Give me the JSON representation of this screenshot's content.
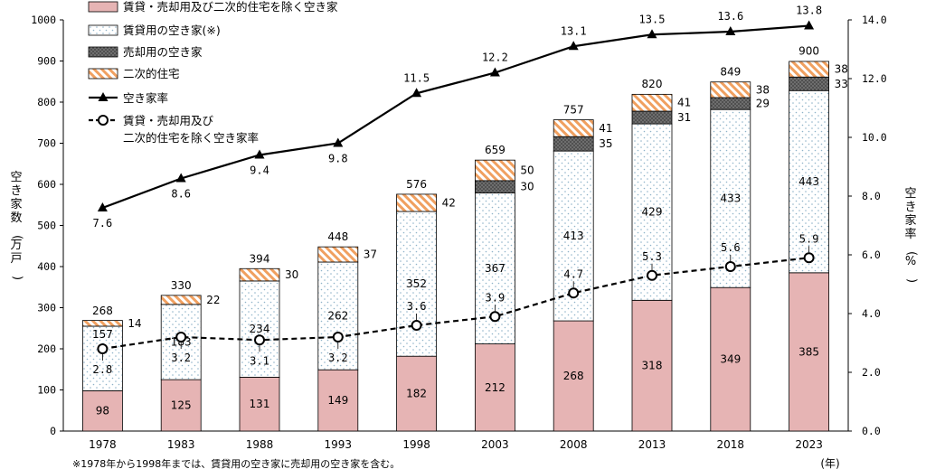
{
  "chart_data": {
    "type": "bar",
    "categories": [
      "1978",
      "1983",
      "1988",
      "1993",
      "1998",
      "2003",
      "2008",
      "2013",
      "2018",
      "2023"
    ],
    "xlabel": "(年)",
    "ylabel": "空き家数(万戸)",
    "y2label": "空き家率(%)",
    "ylim": [
      0,
      1000
    ],
    "y2lim": [
      0.0,
      14.0
    ],
    "yticks": [
      "0",
      "100",
      "200",
      "300",
      "400",
      "500",
      "600",
      "700",
      "800",
      "900",
      "1000"
    ],
    "y2ticks": [
      "0.0",
      "2.0",
      "4.0",
      "6.0",
      "8.0",
      "10.0",
      "12.0",
      "14.0"
    ],
    "stacked": true,
    "series": [
      {
        "name": "賃貸・売却用及び二次的住宅を除く空き家",
        "kind": "bar",
        "color": "#e6b4b4",
        "values": [
          98,
          125,
          131,
          149,
          182,
          212,
          268,
          318,
          349,
          385
        ]
      },
      {
        "name": "賃貸用の空き家(※)",
        "kind": "bar",
        "color": "#8fb3c9",
        "values": [
          157,
          183,
          234,
          262,
          352,
          367,
          413,
          429,
          433,
          443
        ]
      },
      {
        "name": "売却用の空き家",
        "kind": "bar",
        "color": "#555555",
        "values": [
          null,
          null,
          null,
          null,
          null,
          30,
          35,
          31,
          29,
          33
        ]
      },
      {
        "name": "二次的住宅",
        "kind": "bar",
        "color": "#f0a060",
        "values": [
          14,
          22,
          30,
          37,
          42,
          50,
          41,
          41,
          38,
          38
        ]
      },
      {
        "name": "空き家率",
        "kind": "line",
        "axis": "right",
        "marker": "triangle",
        "values": [
          7.6,
          8.6,
          9.4,
          9.8,
          11.5,
          12.2,
          13.1,
          13.5,
          13.6,
          13.8
        ],
        "labels": [
          "7.6",
          "8.6",
          "9.4",
          "9.8",
          "11.5",
          "12.2",
          "13.1",
          "13.5",
          "13.6",
          "13.8"
        ]
      },
      {
        "name": "賃貸・売却用及び二次的住宅を除く空き家率",
        "kind": "line",
        "axis": "right",
        "marker": "circle",
        "dashed": true,
        "values": [
          2.8,
          3.2,
          3.1,
          3.2,
          3.6,
          3.9,
          4.7,
          5.3,
          5.6,
          5.9
        ],
        "labels": [
          "2.8",
          "3.2",
          "3.1",
          "3.2",
          "3.6",
          "3.9",
          "4.7",
          "5.3",
          "5.6",
          "5.9"
        ]
      }
    ],
    "totals": [
      268,
      330,
      394,
      448,
      576,
      659,
      757,
      820,
      849,
      900
    ],
    "legend": {
      "placement": "top-left",
      "entries": [
        "賃貸・売却用及び二次的住宅を除く空き家",
        "賃貸用の空き家(※)",
        "売却用の空き家",
        "二次的住宅",
        "空き家率",
        "賃貸・売却用及び",
        "二次的住宅を除く空き家率"
      ]
    },
    "note": "※1978年から1998年までは、賃貸用の空き家に売却用の空き家を含む。"
  }
}
